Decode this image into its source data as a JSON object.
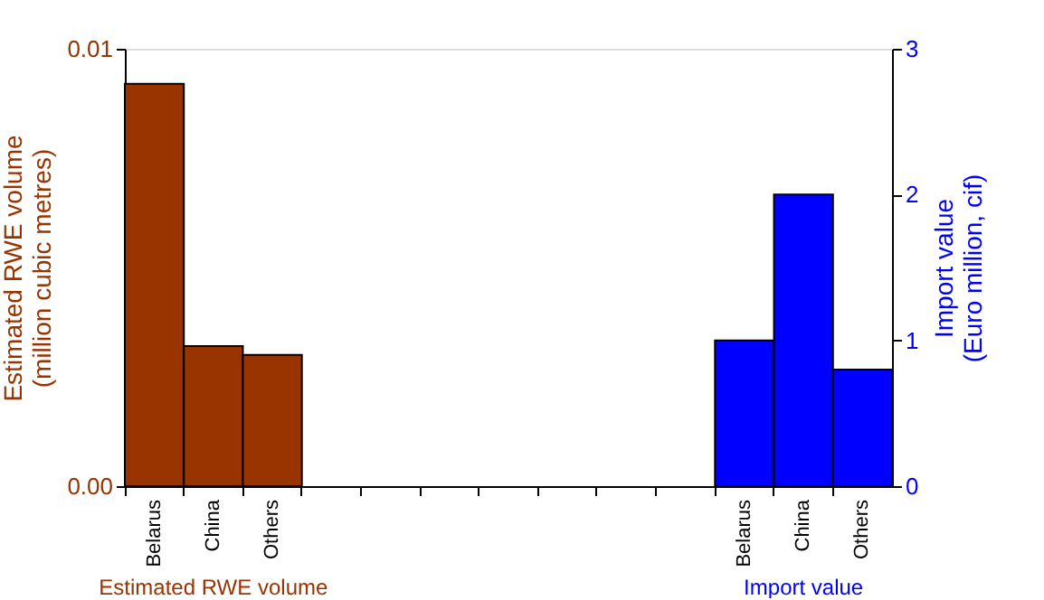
{
  "chart_data": {
    "type": "bar",
    "categories": [
      "Belarus",
      "China",
      "Others",
      null,
      null,
      null,
      null,
      null,
      null,
      null,
      "Belarus",
      "China",
      "Others"
    ],
    "series": [
      {
        "name": "Estimated RWE volume",
        "color": "#993300",
        "values": [
          0.0092,
          0.0032,
          0.003,
          null,
          null,
          null,
          null,
          null,
          null,
          null,
          null,
          null,
          null
        ]
      },
      {
        "name": "Import value",
        "color": "#0000ff",
        "axis": "y2",
        "values": [
          null,
          null,
          null,
          null,
          null,
          null,
          null,
          null,
          null,
          null,
          1.0,
          2.0,
          0.8
        ]
      }
    ],
    "ylabel": "Estimated RWE volume\n(million cubic metres)",
    "y2label": "Import value\n(Euro million, cif)",
    "ylim": [
      0,
      0.01
    ],
    "yticks": [
      {
        "value": 0,
        "label": "0.00"
      },
      {
        "value": 0.01,
        "label": "0.01"
      }
    ],
    "y2lim": [
      0,
      3
    ],
    "y2ticks": [
      0,
      1,
      2,
      3
    ],
    "grid": false
  }
}
